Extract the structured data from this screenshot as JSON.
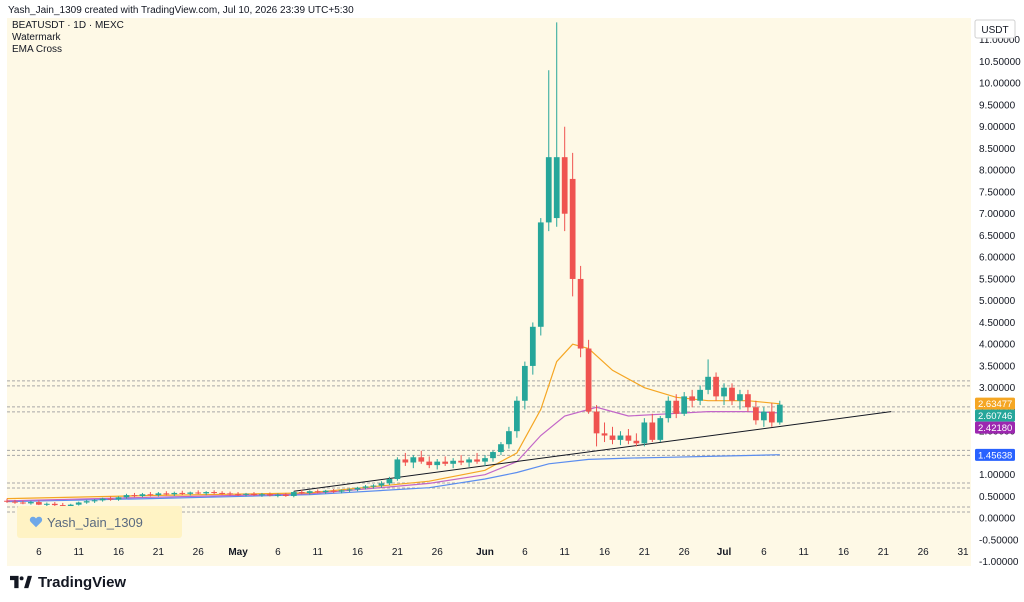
{
  "header": {
    "credit": "Yash_Jain_1309 created with TradingView.com, Jul 10, 2026 23:39 UTC+5:30"
  },
  "legend": {
    "symbol": "BEATUSDT · 1D · MEXC",
    "watermark": "Watermark",
    "indicator": "EMA Cross"
  },
  "currency_label": "USDT",
  "watermark_text": "Yash_Jain_1309",
  "footer_brand": "TradingView",
  "colors": {
    "background": "#fef9e6",
    "up": "#26a69a",
    "down": "#ef5350",
    "ema_orange": "#f5a623",
    "ema_purple": "#c266c8",
    "ema_blue": "#5b8def",
    "trendline": "#131722",
    "zone_line": "#a8a8a8"
  },
  "chart_data": {
    "type": "candlestick",
    "title": "BEATUSDT · 1D · MEXC",
    "y_unit": "USDT",
    "ylim": [
      -1.1,
      11.5
    ],
    "y_ticks": [
      "-1.00000",
      "-0.50000",
      "0.00000",
      "0.50000",
      "1.00000",
      "1.50000",
      "2.00000",
      "2.50000",
      "3.00000",
      "3.50000",
      "4.00000",
      "4.50000",
      "5.00000",
      "5.50000",
      "6.00000",
      "6.50000",
      "7.00000",
      "7.50000",
      "8.00000",
      "8.50000",
      "9.00000",
      "9.50000",
      "10.00000",
      "10.50000",
      "11.00000"
    ],
    "y_tick_values": [
      -1.0,
      -0.5,
      0.0,
      0.5,
      1.0,
      1.5,
      2.0,
      2.5,
      3.0,
      3.5,
      4.0,
      4.5,
      5.0,
      5.5,
      6.0,
      6.5,
      7.0,
      7.5,
      8.0,
      8.5,
      9.0,
      9.5,
      10.0,
      10.5,
      11.0
    ],
    "x_ticks": [
      {
        "label": "6",
        "day": 6
      },
      {
        "label": "11",
        "day": 11
      },
      {
        "label": "16",
        "day": 16
      },
      {
        "label": "21",
        "day": 21
      },
      {
        "label": "26",
        "day": 26
      },
      {
        "label": "May",
        "day": 31
      },
      {
        "label": "6",
        "day": 36
      },
      {
        "label": "11",
        "day": 41
      },
      {
        "label": "16",
        "day": 46
      },
      {
        "label": "21",
        "day": 51
      },
      {
        "label": "26",
        "day": 56
      },
      {
        "label": "Jun",
        "day": 62
      },
      {
        "label": "6",
        "day": 67
      },
      {
        "label": "11",
        "day": 72
      },
      {
        "label": "16",
        "day": 77
      },
      {
        "label": "21",
        "day": 82
      },
      {
        "label": "26",
        "day": 87
      },
      {
        "label": "Jul",
        "day": 92
      },
      {
        "label": "6",
        "day": 97
      },
      {
        "label": "11",
        "day": 102
      },
      {
        "label": "16",
        "day": 107
      },
      {
        "label": "21",
        "day": 112
      },
      {
        "label": "26",
        "day": 117
      },
      {
        "label": "31",
        "day": 122
      }
    ],
    "x_range_days": [
      2,
      123
    ],
    "price_labels": [
      {
        "value": "2.63477",
        "price": 2.63477,
        "color": "#f5a623"
      },
      {
        "value": "2.60746",
        "price": 2.60746,
        "color": "#26a69a"
      },
      {
        "value": "2.42180",
        "price": 2.4218,
        "color": "#9c27b0"
      },
      {
        "value": "1.45638",
        "price": 1.45638,
        "color": "#2962ff"
      }
    ],
    "zones": [
      3.1,
      2.5,
      1.5,
      0.75,
      0.2
    ],
    "trendline": {
      "from": {
        "day": 38,
        "price": 0.62
      },
      "to": {
        "day": 113,
        "price": 2.45
      }
    },
    "candles": [
      {
        "day": 2,
        "o": 0.4,
        "h": 0.45,
        "l": 0.35,
        "c": 0.38
      },
      {
        "day": 3,
        "o": 0.38,
        "h": 0.42,
        "l": 0.33,
        "c": 0.36
      },
      {
        "day": 4,
        "o": 0.36,
        "h": 0.4,
        "l": 0.32,
        "c": 0.34
      },
      {
        "day": 5,
        "o": 0.34,
        "h": 0.4,
        "l": 0.31,
        "c": 0.37
      },
      {
        "day": 6,
        "o": 0.37,
        "h": 0.41,
        "l": 0.3,
        "c": 0.31
      },
      {
        "day": 7,
        "o": 0.31,
        "h": 0.36,
        "l": 0.27,
        "c": 0.33
      },
      {
        "day": 8,
        "o": 0.33,
        "h": 0.37,
        "l": 0.28,
        "c": 0.3
      },
      {
        "day": 9,
        "o": 0.3,
        "h": 0.35,
        "l": 0.25,
        "c": 0.27
      },
      {
        "day": 10,
        "o": 0.27,
        "h": 0.33,
        "l": 0.24,
        "c": 0.31
      },
      {
        "day": 11,
        "o": 0.31,
        "h": 0.38,
        "l": 0.29,
        "c": 0.36
      },
      {
        "day": 12,
        "o": 0.36,
        "h": 0.42,
        "l": 0.33,
        "c": 0.39
      },
      {
        "day": 13,
        "o": 0.39,
        "h": 0.44,
        "l": 0.35,
        "c": 0.41
      },
      {
        "day": 14,
        "o": 0.41,
        "h": 0.47,
        "l": 0.38,
        "c": 0.45
      },
      {
        "day": 15,
        "o": 0.45,
        "h": 0.5,
        "l": 0.4,
        "c": 0.43
      },
      {
        "day": 16,
        "o": 0.43,
        "h": 0.5,
        "l": 0.4,
        "c": 0.48
      },
      {
        "day": 17,
        "o": 0.48,
        "h": 0.56,
        "l": 0.45,
        "c": 0.53
      },
      {
        "day": 18,
        "o": 0.53,
        "h": 0.58,
        "l": 0.48,
        "c": 0.51
      },
      {
        "day": 19,
        "o": 0.51,
        "h": 0.58,
        "l": 0.48,
        "c": 0.55
      },
      {
        "day": 20,
        "o": 0.55,
        "h": 0.6,
        "l": 0.5,
        "c": 0.53
      },
      {
        "day": 21,
        "o": 0.53,
        "h": 0.6,
        "l": 0.5,
        "c": 0.57
      },
      {
        "day": 22,
        "o": 0.57,
        "h": 0.62,
        "l": 0.52,
        "c": 0.55
      },
      {
        "day": 23,
        "o": 0.55,
        "h": 0.61,
        "l": 0.51,
        "c": 0.58
      },
      {
        "day": 24,
        "o": 0.58,
        "h": 0.63,
        "l": 0.53,
        "c": 0.56
      },
      {
        "day": 25,
        "o": 0.56,
        "h": 0.61,
        "l": 0.52,
        "c": 0.59
      },
      {
        "day": 26,
        "o": 0.59,
        "h": 0.64,
        "l": 0.55,
        "c": 0.57
      },
      {
        "day": 27,
        "o": 0.57,
        "h": 0.62,
        "l": 0.53,
        "c": 0.6
      },
      {
        "day": 28,
        "o": 0.6,
        "h": 0.64,
        "l": 0.55,
        "c": 0.58
      },
      {
        "day": 29,
        "o": 0.58,
        "h": 0.62,
        "l": 0.54,
        "c": 0.57
      },
      {
        "day": 30,
        "o": 0.57,
        "h": 0.61,
        "l": 0.52,
        "c": 0.55
      },
      {
        "day": 31,
        "o": 0.55,
        "h": 0.6,
        "l": 0.51,
        "c": 0.54
      },
      {
        "day": 32,
        "o": 0.54,
        "h": 0.58,
        "l": 0.5,
        "c": 0.56
      },
      {
        "day": 33,
        "o": 0.56,
        "h": 0.6,
        "l": 0.51,
        "c": 0.53
      },
      {
        "day": 34,
        "o": 0.53,
        "h": 0.58,
        "l": 0.49,
        "c": 0.55
      },
      {
        "day": 35,
        "o": 0.55,
        "h": 0.59,
        "l": 0.5,
        "c": 0.52
      },
      {
        "day": 36,
        "o": 0.52,
        "h": 0.57,
        "l": 0.48,
        "c": 0.54
      },
      {
        "day": 37,
        "o": 0.54,
        "h": 0.58,
        "l": 0.49,
        "c": 0.51
      },
      {
        "day": 38,
        "o": 0.51,
        "h": 0.62,
        "l": 0.48,
        "c": 0.6
      },
      {
        "day": 39,
        "o": 0.6,
        "h": 0.65,
        "l": 0.55,
        "c": 0.58
      },
      {
        "day": 40,
        "o": 0.58,
        "h": 0.64,
        "l": 0.54,
        "c": 0.62
      },
      {
        "day": 41,
        "o": 0.62,
        "h": 0.66,
        "l": 0.57,
        "c": 0.6
      },
      {
        "day": 42,
        "o": 0.6,
        "h": 0.65,
        "l": 0.56,
        "c": 0.63
      },
      {
        "day": 43,
        "o": 0.63,
        "h": 0.67,
        "l": 0.58,
        "c": 0.61
      },
      {
        "day": 44,
        "o": 0.61,
        "h": 0.66,
        "l": 0.57,
        "c": 0.64
      },
      {
        "day": 45,
        "o": 0.64,
        "h": 0.68,
        "l": 0.6,
        "c": 0.66
      },
      {
        "day": 46,
        "o": 0.66,
        "h": 0.72,
        "l": 0.62,
        "c": 0.7
      },
      {
        "day": 47,
        "o": 0.7,
        "h": 0.76,
        "l": 0.66,
        "c": 0.73
      },
      {
        "day": 48,
        "o": 0.73,
        "h": 0.78,
        "l": 0.68,
        "c": 0.75
      },
      {
        "day": 49,
        "o": 0.75,
        "h": 0.85,
        "l": 0.7,
        "c": 0.8
      },
      {
        "day": 50,
        "o": 0.8,
        "h": 0.95,
        "l": 0.76,
        "c": 0.9
      },
      {
        "day": 51,
        "o": 0.9,
        "h": 1.4,
        "l": 0.86,
        "c": 1.35
      },
      {
        "day": 52,
        "o": 1.35,
        "h": 1.5,
        "l": 1.2,
        "c": 1.28
      },
      {
        "day": 53,
        "o": 1.28,
        "h": 1.45,
        "l": 1.15,
        "c": 1.4
      },
      {
        "day": 54,
        "o": 1.4,
        "h": 1.55,
        "l": 1.25,
        "c": 1.3
      },
      {
        "day": 55,
        "o": 1.3,
        "h": 1.42,
        "l": 1.15,
        "c": 1.22
      },
      {
        "day": 56,
        "o": 1.22,
        "h": 1.36,
        "l": 1.12,
        "c": 1.3
      },
      {
        "day": 57,
        "o": 1.3,
        "h": 1.42,
        "l": 1.2,
        "c": 1.25
      },
      {
        "day": 58,
        "o": 1.25,
        "h": 1.38,
        "l": 1.15,
        "c": 1.32
      },
      {
        "day": 59,
        "o": 1.32,
        "h": 1.45,
        "l": 1.22,
        "c": 1.28
      },
      {
        "day": 60,
        "o": 1.28,
        "h": 1.4,
        "l": 1.18,
        "c": 1.35
      },
      {
        "day": 61,
        "o": 1.35,
        "h": 1.5,
        "l": 1.25,
        "c": 1.3
      },
      {
        "day": 62,
        "o": 1.3,
        "h": 1.45,
        "l": 1.2,
        "c": 1.38
      },
      {
        "day": 63,
        "o": 1.38,
        "h": 1.55,
        "l": 1.3,
        "c": 1.52
      },
      {
        "day": 64,
        "o": 1.52,
        "h": 1.75,
        "l": 1.45,
        "c": 1.7
      },
      {
        "day": 65,
        "o": 1.7,
        "h": 2.1,
        "l": 1.6,
        "c": 2.0
      },
      {
        "day": 66,
        "o": 2.0,
        "h": 2.8,
        "l": 1.85,
        "c": 2.7
      },
      {
        "day": 67,
        "o": 2.7,
        "h": 3.6,
        "l": 2.5,
        "c": 3.5
      },
      {
        "day": 68,
        "o": 3.5,
        "h": 4.5,
        "l": 3.3,
        "c": 4.4
      },
      {
        "day": 69,
        "o": 4.4,
        "h": 6.9,
        "l": 4.2,
        "c": 6.8
      },
      {
        "day": 70,
        "o": 6.8,
        "h": 10.3,
        "l": 6.6,
        "c": 8.3
      },
      {
        "day": 71,
        "o": 6.9,
        "h": 11.4,
        "l": 6.7,
        "c": 8.3
      },
      {
        "day": 72,
        "o": 8.3,
        "h": 9.0,
        "l": 6.6,
        "c": 7.0
      },
      {
        "day": 73,
        "o": 7.8,
        "h": 8.4,
        "l": 5.1,
        "c": 5.5
      },
      {
        "day": 74,
        "o": 5.5,
        "h": 5.8,
        "l": 3.7,
        "c": 3.9
      },
      {
        "day": 75,
        "o": 3.9,
        "h": 4.1,
        "l": 2.4,
        "c": 2.45
      },
      {
        "day": 76,
        "o": 2.45,
        "h": 2.6,
        "l": 1.65,
        "c": 1.95
      },
      {
        "day": 77,
        "o": 1.95,
        "h": 2.2,
        "l": 1.75,
        "c": 1.9
      },
      {
        "day": 78,
        "o": 1.9,
        "h": 2.1,
        "l": 1.7,
        "c": 1.8
      },
      {
        "day": 79,
        "o": 1.8,
        "h": 2.0,
        "l": 1.68,
        "c": 1.9
      },
      {
        "day": 80,
        "o": 1.9,
        "h": 2.05,
        "l": 1.7,
        "c": 1.78
      },
      {
        "day": 81,
        "o": 1.78,
        "h": 1.95,
        "l": 1.65,
        "c": 1.72
      },
      {
        "day": 82,
        "o": 1.72,
        "h": 2.3,
        "l": 1.65,
        "c": 2.2
      },
      {
        "day": 83,
        "o": 2.2,
        "h": 2.4,
        "l": 1.75,
        "c": 1.8
      },
      {
        "day": 84,
        "o": 1.8,
        "h": 2.35,
        "l": 1.75,
        "c": 2.3
      },
      {
        "day": 85,
        "o": 2.3,
        "h": 2.8,
        "l": 2.2,
        "c": 2.7
      },
      {
        "day": 86,
        "o": 2.7,
        "h": 2.85,
        "l": 2.3,
        "c": 2.4
      },
      {
        "day": 87,
        "o": 2.4,
        "h": 2.9,
        "l": 2.35,
        "c": 2.8
      },
      {
        "day": 88,
        "o": 2.8,
        "h": 2.95,
        "l": 2.55,
        "c": 2.7
      },
      {
        "day": 89,
        "o": 2.7,
        "h": 3.05,
        "l": 2.6,
        "c": 2.95
      },
      {
        "day": 90,
        "o": 2.95,
        "h": 3.65,
        "l": 2.85,
        "c": 3.25
      },
      {
        "day": 91,
        "o": 3.25,
        "h": 3.35,
        "l": 2.7,
        "c": 2.8
      },
      {
        "day": 92,
        "o": 2.8,
        "h": 3.1,
        "l": 2.6,
        "c": 3.0
      },
      {
        "day": 93,
        "o": 3.0,
        "h": 3.1,
        "l": 2.6,
        "c": 2.7
      },
      {
        "day": 94,
        "o": 2.7,
        "h": 2.95,
        "l": 2.5,
        "c": 2.85
      },
      {
        "day": 95,
        "o": 2.85,
        "h": 2.95,
        "l": 2.45,
        "c": 2.55
      },
      {
        "day": 96,
        "o": 2.55,
        "h": 2.7,
        "l": 2.15,
        "c": 2.25
      },
      {
        "day": 97,
        "o": 2.25,
        "h": 2.55,
        "l": 2.1,
        "c": 2.45
      },
      {
        "day": 98,
        "o": 2.45,
        "h": 2.65,
        "l": 2.1,
        "c": 2.2
      },
      {
        "day": 99,
        "o": 2.2,
        "h": 2.7,
        "l": 2.15,
        "c": 2.61
      }
    ],
    "ema_orange": [
      [
        2,
        0.45
      ],
      [
        20,
        0.52
      ],
      [
        40,
        0.58
      ],
      [
        55,
        0.85
      ],
      [
        62,
        1.1
      ],
      [
        66,
        1.5
      ],
      [
        69,
        2.5
      ],
      [
        71,
        3.6
      ],
      [
        73,
        4.0
      ],
      [
        75,
        3.9
      ],
      [
        78,
        3.4
      ],
      [
        82,
        3.0
      ],
      [
        86,
        2.78
      ],
      [
        90,
        2.7
      ],
      [
        95,
        2.7
      ],
      [
        99,
        2.63
      ]
    ],
    "ema_purple": [
      [
        2,
        0.4
      ],
      [
        20,
        0.48
      ],
      [
        40,
        0.56
      ],
      [
        55,
        0.8
      ],
      [
        62,
        1.0
      ],
      [
        66,
        1.3
      ],
      [
        69,
        1.9
      ],
      [
        72,
        2.35
      ],
      [
        76,
        2.55
      ],
      [
        80,
        2.35
      ],
      [
        85,
        2.4
      ],
      [
        90,
        2.45
      ],
      [
        95,
        2.45
      ],
      [
        99,
        2.42
      ]
    ],
    "ema_blue": [
      [
        2,
        0.38
      ],
      [
        20,
        0.45
      ],
      [
        40,
        0.54
      ],
      [
        55,
        0.7
      ],
      [
        62,
        0.9
      ],
      [
        66,
        1.05
      ],
      [
        70,
        1.25
      ],
      [
        75,
        1.35
      ],
      [
        80,
        1.38
      ],
      [
        85,
        1.4
      ],
      [
        90,
        1.42
      ],
      [
        95,
        1.44
      ],
      [
        99,
        1.46
      ]
    ]
  }
}
